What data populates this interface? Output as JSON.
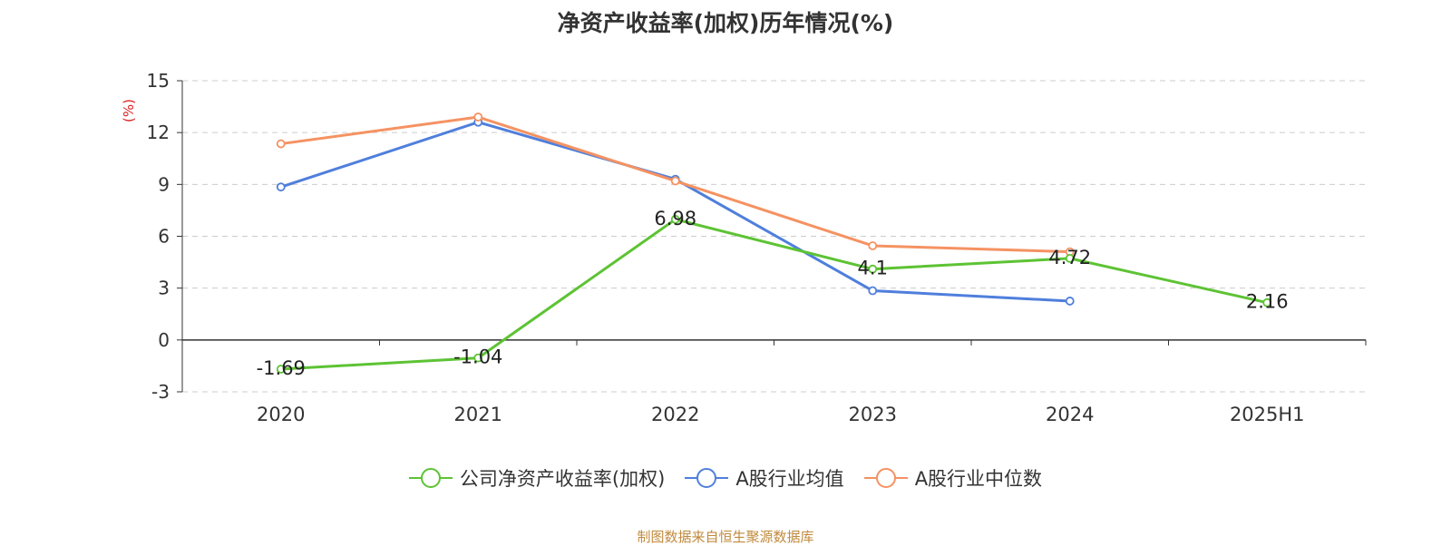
{
  "chart_data": {
    "type": "line",
    "title": "净资产收益率(加权)历年情况(%)",
    "ylabel": "(%)",
    "xlabel": "",
    "categories": [
      "2020",
      "2021",
      "2022",
      "2023",
      "2024",
      "2025H1"
    ],
    "ylim": [
      -3,
      15
    ],
    "yticks": [
      -3,
      0,
      3,
      6,
      9,
      12,
      15
    ],
    "grid": true,
    "legend_position": "bottom",
    "series": [
      {
        "name": "公司净资产收益率(加权)",
        "color": "#5dc334",
        "values": [
          -1.69,
          -1.04,
          6.98,
          4.1,
          4.72,
          2.16
        ],
        "labels": [
          "-1.69",
          "-1.04",
          "6.98",
          "4.1",
          "4.72",
          "2.16"
        ]
      },
      {
        "name": "A股行业均值",
        "color": "#4f7fdc",
        "values": [
          8.85,
          12.6,
          9.3,
          2.85,
          2.25,
          null
        ]
      },
      {
        "name": "A股行业中位数",
        "color": "#f59262",
        "values": [
          11.35,
          12.9,
          9.2,
          5.45,
          5.1,
          null
        ]
      }
    ]
  },
  "source": "制图数据来自恒生聚源数据库"
}
